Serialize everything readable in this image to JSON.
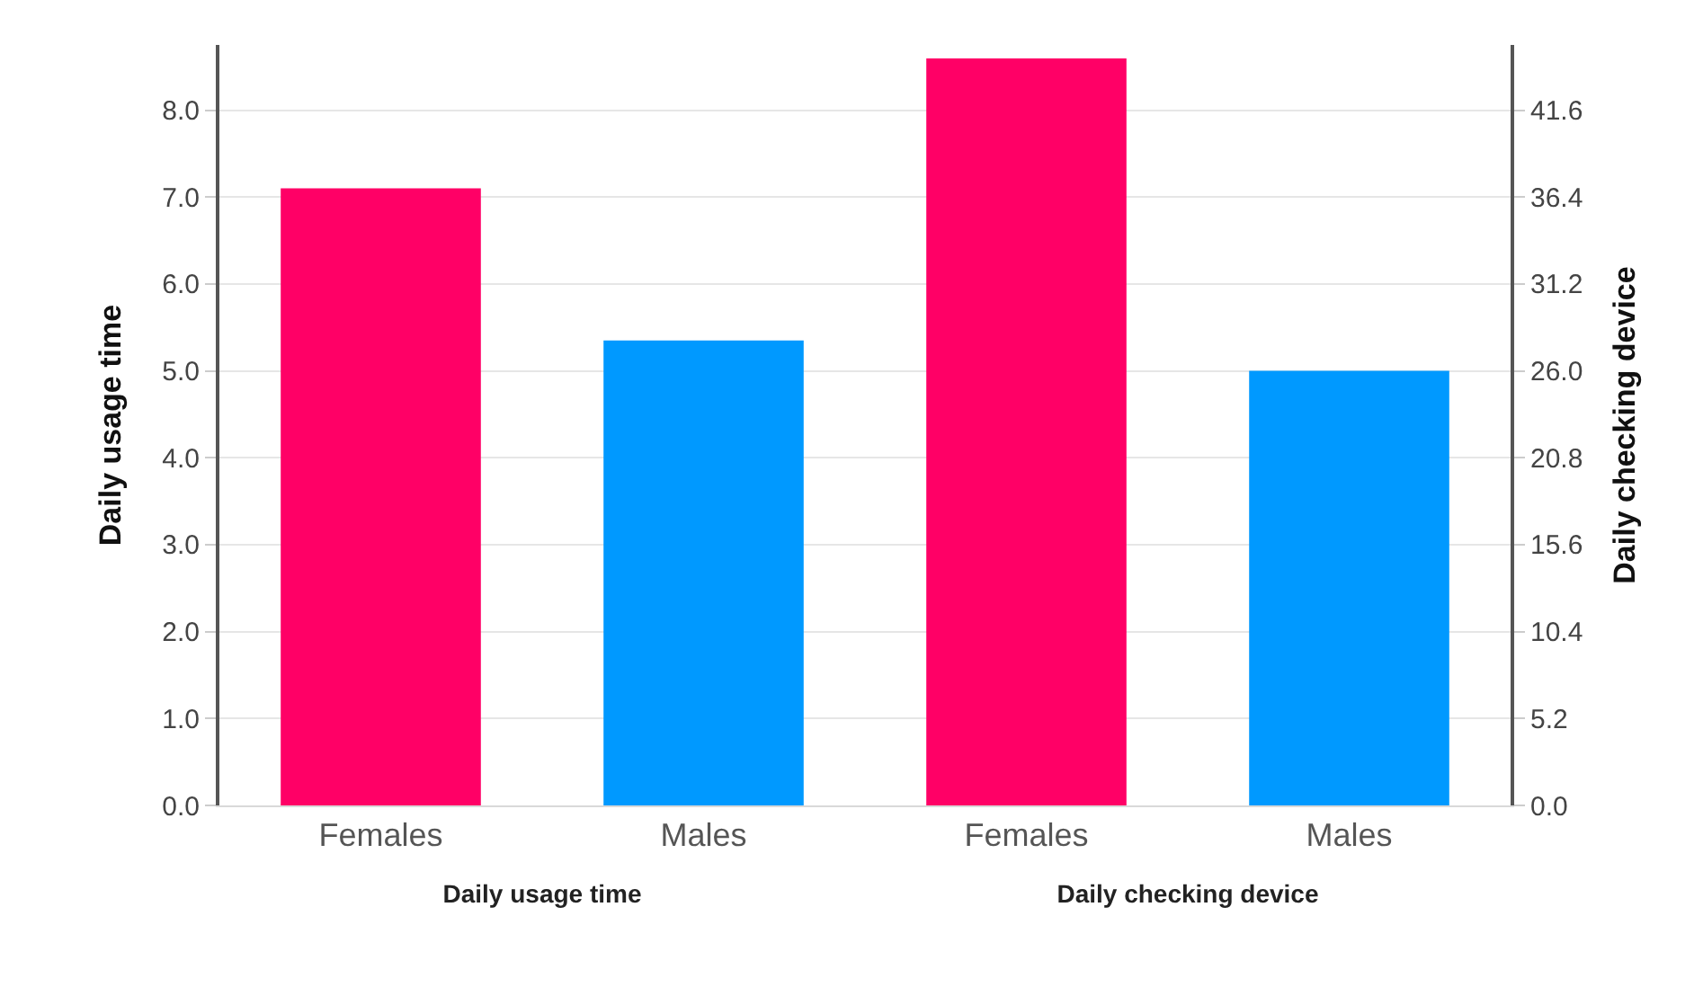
{
  "chart_data": [
    {
      "type": "bar",
      "categories": [
        "Females",
        "Males"
      ],
      "xlabel": "Daily usage time",
      "ylabel": "Daily usage time",
      "colors": [
        "#ff0066",
        "#0099ff"
      ],
      "values": [
        7.1,
        5.35
      ],
      "ylim": [
        0,
        8.75
      ],
      "yticks": [
        {
          "value": 0,
          "label": "0.0"
        },
        {
          "value": 1,
          "label": "1.0"
        },
        {
          "value": 2,
          "label": "2.0"
        },
        {
          "value": 3,
          "label": "3.0"
        },
        {
          "value": 4,
          "label": "4.0"
        },
        {
          "value": 5,
          "label": "5.0"
        },
        {
          "value": 6,
          "label": "6.0"
        },
        {
          "value": 7,
          "label": "7.0"
        },
        {
          "value": 8,
          "label": "8.0"
        }
      ],
      "grid": "y"
    },
    {
      "type": "bar",
      "categories": [
        "Females",
        "Males"
      ],
      "xlabel": "Daily checking device",
      "y2label": "Daily checking device",
      "series": [
        {
          "axis": "y2",
          "colors": [
            "#ff0066",
            "#0099ff"
          ],
          "values": [
            44.7,
            26.0
          ]
        }
      ],
      "y2lim": [
        0,
        45.5
      ],
      "y2ticks": [
        {
          "value": 0,
          "label": "0.0"
        },
        5.2,
        10.4,
        15.6,
        20.8,
        {
          "value": 26,
          "label": "26.0"
        },
        31.2,
        36.4,
        41.6
      ],
      "grid": "y"
    }
  ]
}
